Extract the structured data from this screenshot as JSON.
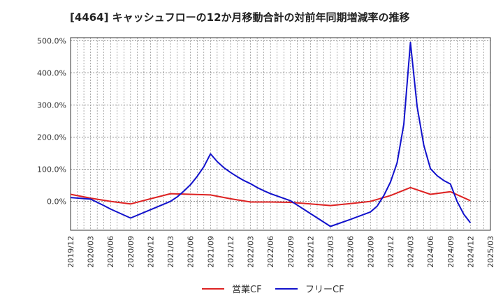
{
  "chart_data": {
    "type": "line",
    "title": "[4464]  キャッシュフローの12か月移動合計の対前年同期増減率の推移",
    "xlabel": "",
    "ylabel": "",
    "ylim": [
      -90,
      510
    ],
    "yticks": [
      0,
      100,
      200,
      300,
      400,
      500
    ],
    "ytick_labels": [
      "0.0%",
      "100.0%",
      "200.0%",
      "300.0%",
      "400.0%",
      "500.0%"
    ],
    "xticks": [
      "2019/12",
      "2020/03",
      "2020/06",
      "2020/09",
      "2020/12",
      "2021/03",
      "2021/06",
      "2021/09",
      "2021/12",
      "2022/03",
      "2022/06",
      "2022/09",
      "2022/12",
      "2023/03",
      "2023/06",
      "2023/09",
      "2023/12",
      "2024/03",
      "2024/06",
      "2024/09",
      "2024/12",
      "2025/03"
    ],
    "grid": true,
    "legend_position": "bottom-center",
    "series": [
      {
        "name": "営業CF",
        "color": "#dd2222",
        "x": [
          0,
          3,
          6,
          9,
          12,
          15,
          18,
          21,
          24,
          27,
          30,
          33,
          36,
          39,
          42,
          45,
          48,
          51,
          54,
          57,
          60
        ],
        "values": [
          22,
          10,
          0,
          -8,
          8,
          24,
          22,
          20,
          8,
          -2,
          -2,
          -3,
          -8,
          -13,
          -7,
          0,
          18,
          43,
          22,
          30,
          2
        ]
      },
      {
        "name": "フリーCF",
        "color": "#1111cc",
        "x": [
          0,
          3,
          4,
          5,
          6,
          9,
          12,
          15,
          16,
          17,
          18,
          19,
          20,
          21,
          22,
          23,
          24,
          25,
          26,
          27,
          28,
          29,
          30,
          33,
          36,
          39,
          42,
          45,
          46,
          47,
          48,
          49,
          50,
          51,
          52,
          53,
          54,
          55,
          56,
          57,
          58,
          59,
          60
        ],
        "values": [
          12,
          7,
          -3,
          -13,
          -24,
          -52,
          -26,
          0,
          14,
          32,
          52,
          78,
          108,
          148,
          124,
          105,
          90,
          77,
          65,
          55,
          43,
          33,
          24,
          2,
          -38,
          -78,
          -56,
          -33,
          -15,
          18,
          60,
          120,
          240,
          495,
          295,
          175,
          102,
          80,
          65,
          54,
          0,
          -40,
          -67
        ]
      }
    ]
  }
}
